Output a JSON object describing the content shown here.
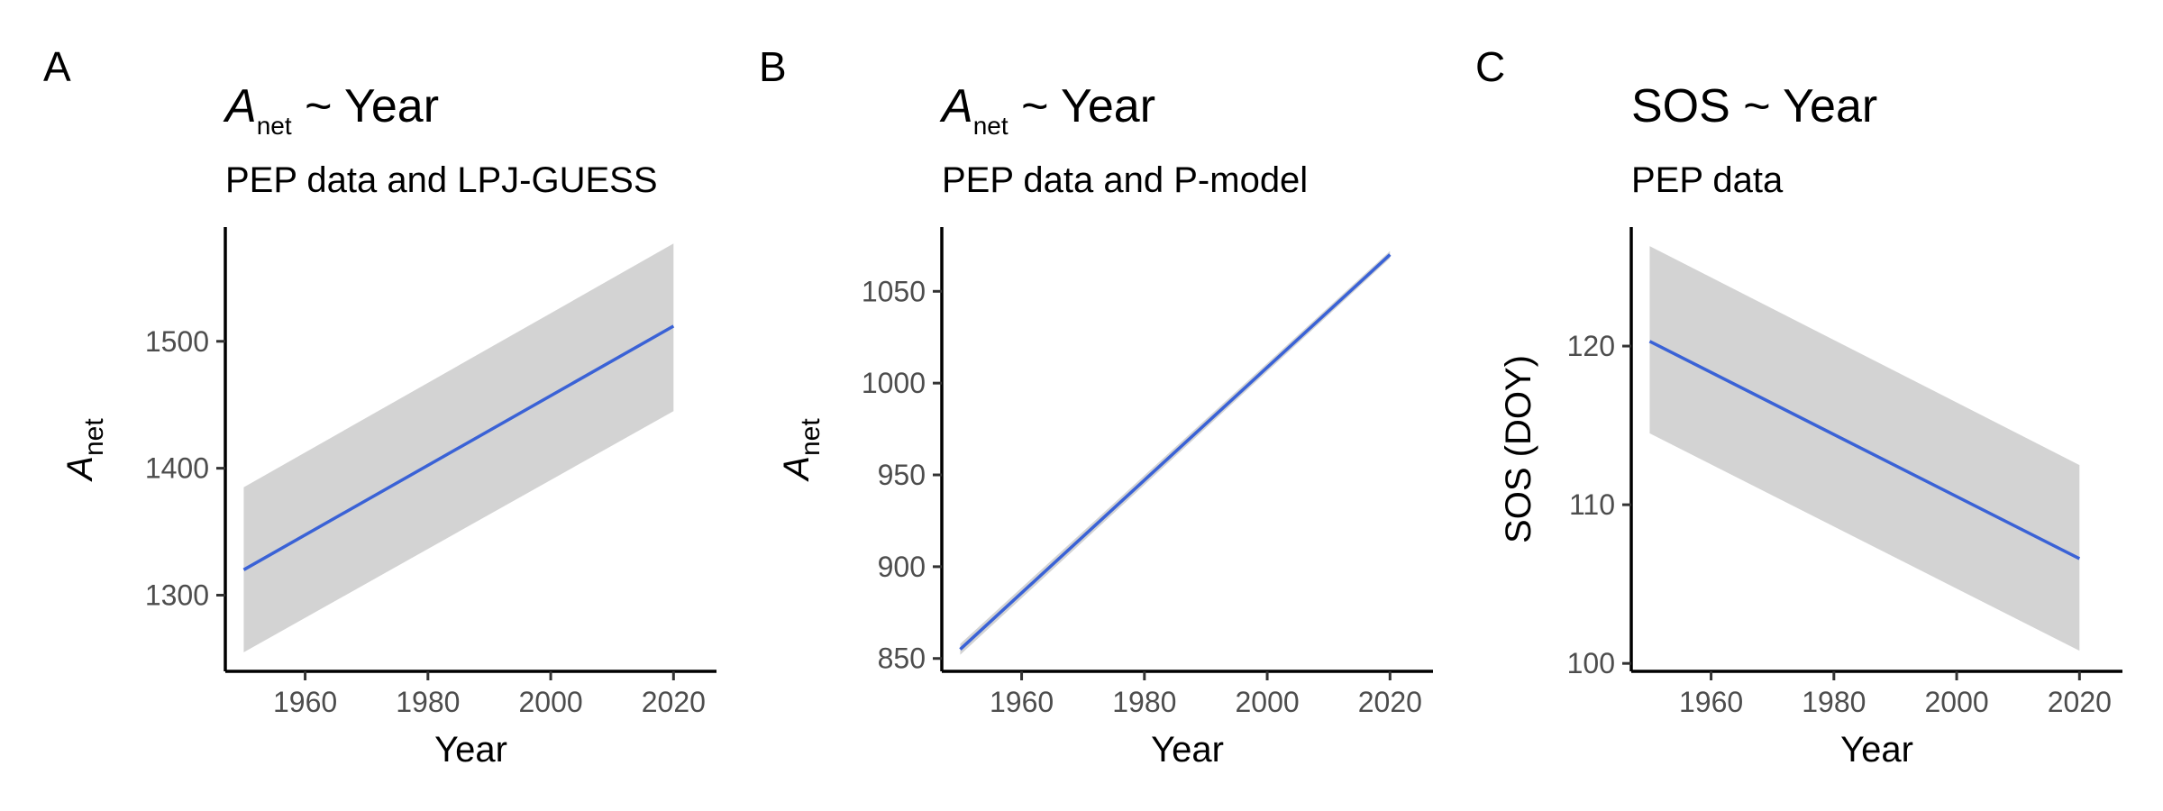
{
  "chart_data": [
    {
      "type": "line",
      "panel_label": "A",
      "title_main": "A",
      "title_sub": "net",
      "title_rest": " ~ Year",
      "subtitle": "PEP data and LPJ-GUESS",
      "xlabel": "Year",
      "ylabel_main": "A",
      "ylabel_sub": "net",
      "ylabel": "",
      "xlim": [
        1947,
        2027
      ],
      "ylim": [
        1240,
        1590
      ],
      "xticks": [
        1960,
        1980,
        2000,
        2020
      ],
      "yticks": [
        1300,
        1400,
        1500
      ],
      "series": [
        {
          "x": [
            1950,
            2020
          ],
          "y": [
            1320,
            1512
          ],
          "lower": [
            1255,
            1445
          ],
          "upper": [
            1385,
            1577
          ]
        }
      ],
      "colors": {
        "line": "#3a62d6",
        "band": "#d3d3d3"
      }
    },
    {
      "type": "line",
      "panel_label": "B",
      "title_main": "A",
      "title_sub": "net",
      "title_rest": " ~ Year",
      "subtitle": "PEP data and P-model",
      "xlabel": "Year",
      "ylabel_main": "A",
      "ylabel_sub": "net",
      "ylabel": "",
      "xlim": [
        1947,
        2027
      ],
      "ylim": [
        843,
        1085
      ],
      "xticks": [
        1960,
        1980,
        2000,
        2020
      ],
      "yticks": [
        850,
        900,
        950,
        1000,
        1050
      ],
      "series": [
        {
          "x": [
            1950,
            2020
          ],
          "y": [
            855,
            1070
          ],
          "lower": [
            852,
            1068
          ],
          "upper": [
            858,
            1072
          ]
        }
      ],
      "colors": {
        "line": "#3a62d6",
        "band": "#d3d3d3"
      }
    },
    {
      "type": "line",
      "panel_label": "C",
      "title_main": "SOS ~ Year",
      "title_sub": "",
      "title_rest": "",
      "subtitle": "PEP data",
      "xlabel": "Year",
      "ylabel_main": "",
      "ylabel_sub": "",
      "ylabel": "SOS (DOY)",
      "xlim": [
        1947,
        2027
      ],
      "ylim": [
        99.5,
        127.5
      ],
      "xticks": [
        1960,
        1980,
        2000,
        2020
      ],
      "yticks": [
        100,
        110,
        120
      ],
      "series": [
        {
          "x": [
            1950,
            2020
          ],
          "y": [
            120.3,
            106.6
          ],
          "lower": [
            114.5,
            100.8
          ],
          "upper": [
            126.3,
            112.5
          ]
        }
      ],
      "colors": {
        "line": "#3a62d6",
        "band": "#d3d3d3"
      }
    }
  ]
}
